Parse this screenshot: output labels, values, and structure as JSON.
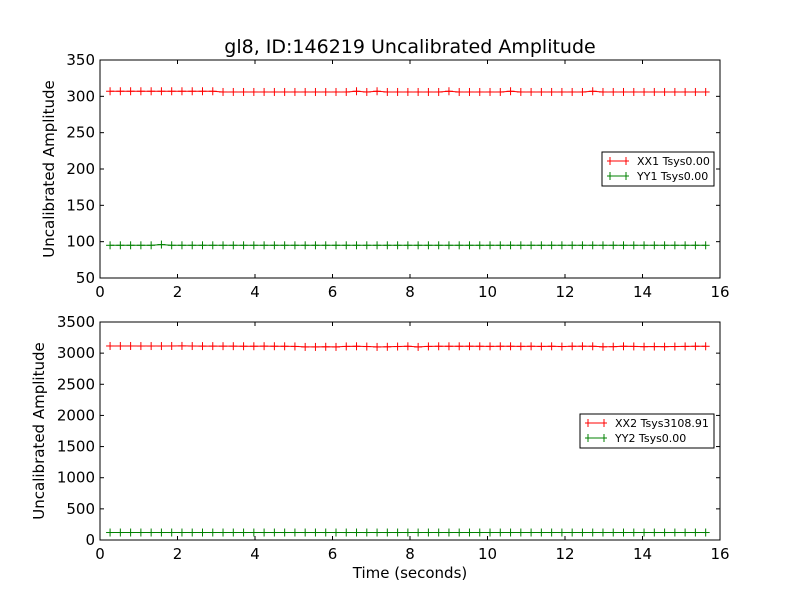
{
  "title": "gl8, ID:146219 Uncalibrated Amplitude",
  "xlabel": "Time (seconds)",
  "chart_data": [
    {
      "type": "line",
      "title": "gl8, ID:146219 Uncalibrated Amplitude",
      "xlabel": "",
      "ylabel": "Uncalibrated Amplitude",
      "xlim": [
        0,
        16
      ],
      "ylim": [
        50,
        350
      ],
      "xticks": [
        "0",
        "2",
        "4",
        "6",
        "8",
        "10",
        "12",
        "14",
        "16"
      ],
      "xtick_values": [
        0,
        2,
        4,
        6,
        8,
        10,
        12,
        14,
        16
      ],
      "yticks": [
        "50",
        "100",
        "150",
        "200",
        "250",
        "300",
        "350"
      ],
      "ytick_values": [
        50,
        100,
        150,
        200,
        250,
        300,
        350
      ],
      "legend_position": "center-right",
      "x_start": 0.26,
      "x_step": 0.265,
      "series": [
        {
          "name": "XX1 Tsys0.00",
          "color": "#ff0000",
          "values": [
            307,
            307,
            307,
            307,
            307,
            307,
            307,
            307,
            307,
            307,
            307,
            306,
            306,
            306,
            306,
            306,
            306,
            306,
            306,
            306,
            306,
            306,
            306,
            306,
            307,
            306,
            307,
            306,
            306,
            306,
            306,
            306,
            306,
            307,
            306,
            306,
            306,
            306,
            306,
            307,
            306,
            306,
            306,
            306,
            306,
            306,
            306,
            307,
            306,
            306,
            306,
            306,
            306,
            306,
            306,
            306,
            306,
            306,
            306
          ]
        },
        {
          "name": "YY1 Tsys0.00",
          "color": "#008000",
          "values": [
            95,
            95,
            95,
            95,
            95,
            96,
            95,
            95,
            95,
            95,
            95,
            95,
            95,
            95,
            95,
            95,
            95,
            95,
            95,
            95,
            95,
            95,
            95,
            95,
            95,
            95,
            95,
            95,
            95,
            95,
            95,
            95,
            95,
            95,
            95,
            95,
            95,
            95,
            95,
            95,
            95,
            95,
            95,
            95,
            95,
            95,
            95,
            95,
            95,
            95,
            95,
            95,
            95,
            95,
            95,
            95,
            95,
            95,
            95
          ]
        }
      ]
    },
    {
      "type": "line",
      "xlabel": "Time (seconds)",
      "ylabel": "Uncalibrated Amplitude",
      "xlim": [
        0,
        16
      ],
      "ylim": [
        0,
        3500
      ],
      "xticks": [
        "0",
        "2",
        "4",
        "6",
        "8",
        "10",
        "12",
        "14",
        "16"
      ],
      "xtick_values": [
        0,
        2,
        4,
        6,
        8,
        10,
        12,
        14,
        16
      ],
      "yticks": [
        "0",
        "500",
        "1000",
        "1500",
        "2000",
        "2500",
        "3000",
        "3500"
      ],
      "ytick_values": [
        0,
        500,
        1000,
        1500,
        2000,
        2500,
        3000,
        3500
      ],
      "legend_position": "center-right",
      "x_start": 0.26,
      "x_step": 0.265,
      "series": [
        {
          "name": "XX2 Tsys3108.91",
          "color": "#ff0000",
          "values": [
            3115,
            3115,
            3115,
            3114,
            3114,
            3114,
            3115,
            3116,
            3114,
            3113,
            3113,
            3112,
            3112,
            3111,
            3111,
            3112,
            3111,
            3110,
            3108,
            3100,
            3100,
            3102,
            3100,
            3108,
            3110,
            3106,
            3100,
            3102,
            3106,
            3110,
            3100,
            3108,
            3110,
            3110,
            3110,
            3111,
            3110,
            3109,
            3110,
            3110,
            3109,
            3110,
            3108,
            3110,
            3106,
            3110,
            3111,
            3110,
            3102,
            3104,
            3110,
            3108,
            3104,
            3106,
            3104,
            3106,
            3108,
            3110,
            3110
          ]
        },
        {
          "name": "YY2 Tsys0.00",
          "color": "#008000",
          "values": [
            120,
            120,
            120,
            120,
            120,
            120,
            120,
            120,
            120,
            120,
            120,
            120,
            120,
            120,
            120,
            120,
            120,
            120,
            120,
            120,
            120,
            120,
            120,
            120,
            120,
            120,
            120,
            120,
            120,
            120,
            120,
            120,
            120,
            120,
            120,
            120,
            120,
            120,
            120,
            120,
            120,
            120,
            120,
            120,
            120,
            120,
            120,
            120,
            120,
            120,
            120,
            120,
            120,
            120,
            120,
            120,
            120,
            120,
            120
          ]
        }
      ]
    }
  ]
}
